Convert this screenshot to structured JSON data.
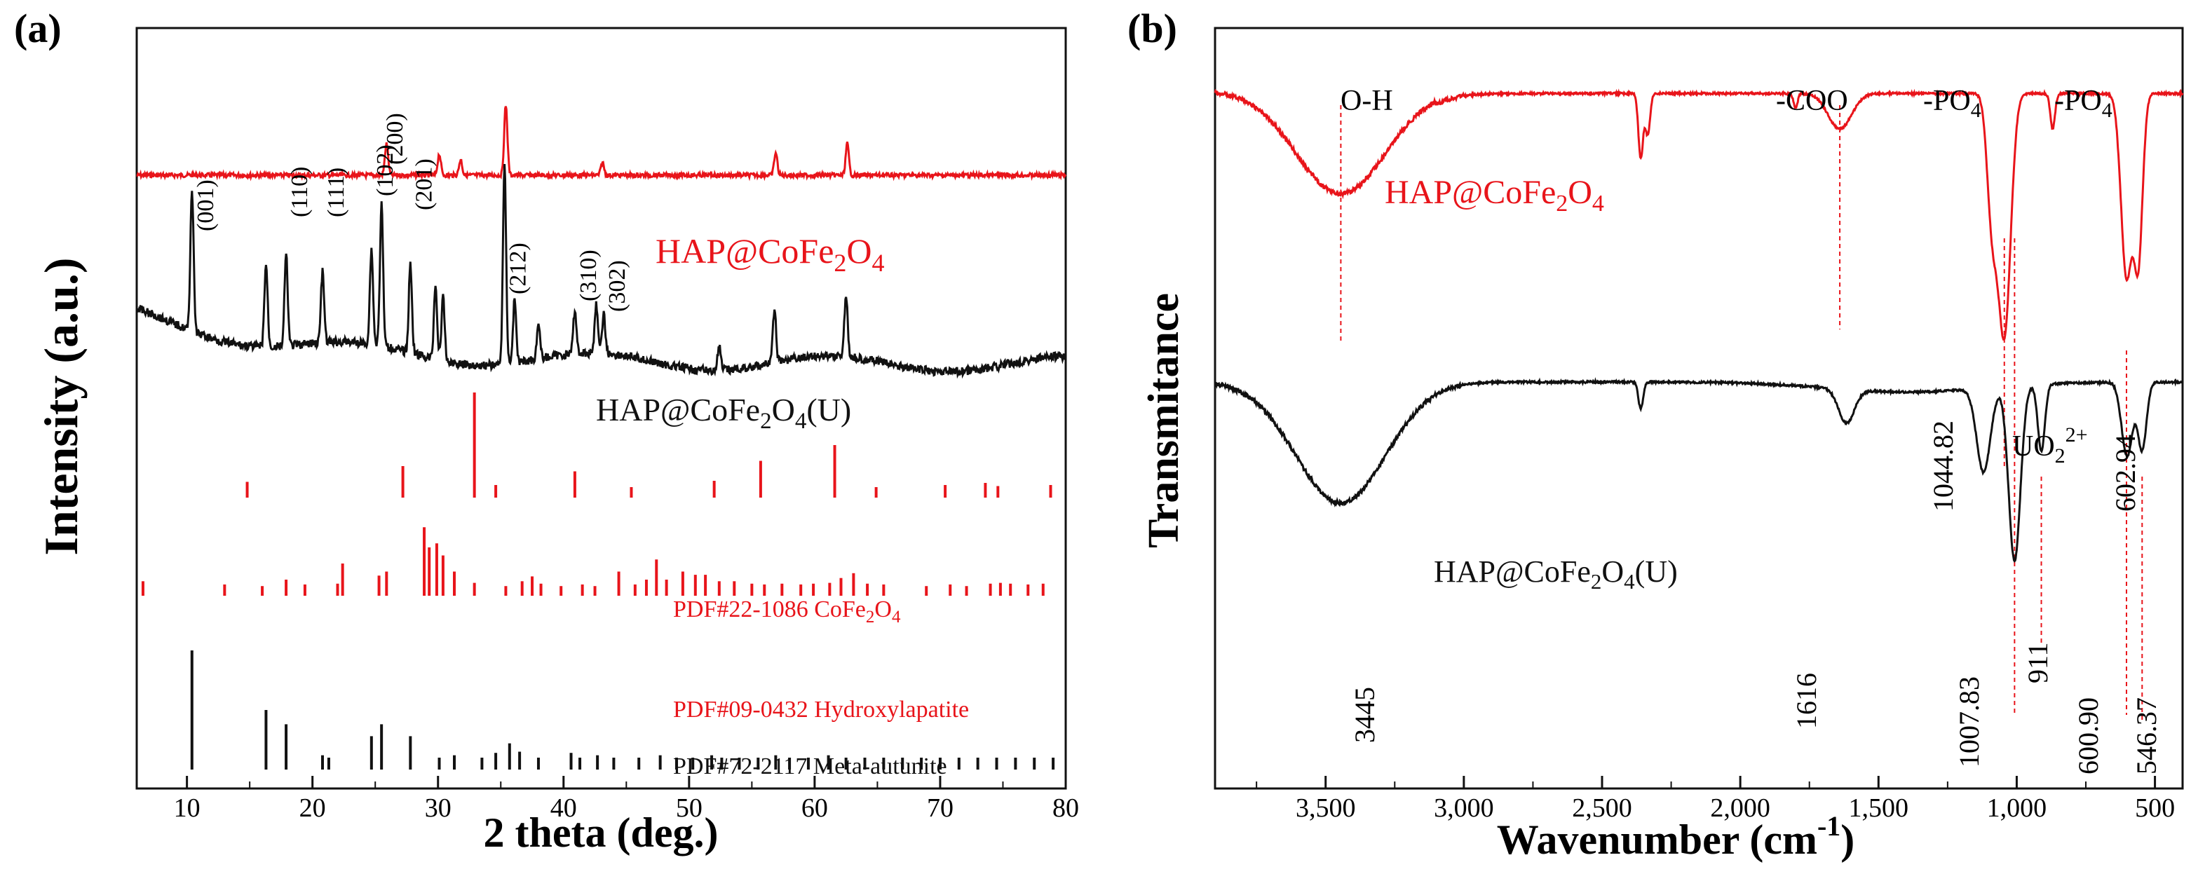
{
  "colors": {
    "red": "#e8141a",
    "black": "#111111",
    "ref_red": "#e8141a",
    "ref_black": "#111111"
  },
  "chart_data": [
    {
      "type": "line",
      "panel_label": "(a)",
      "xlabel": "2 theta (deg.)",
      "ylabel": "Intensity (a.u.)",
      "xlim": [
        6,
        80
      ],
      "xticks": [
        "10",
        "20",
        "30",
        "40",
        "50",
        "60",
        "70",
        "80"
      ],
      "series": [
        {
          "name": "HAP@CoFe2O4",
          "color": "red",
          "peaks": [
            [
              25.9,
              0.45
            ],
            [
              30.1,
              0.3
            ],
            [
              31.8,
              0.22
            ],
            [
              35.4,
              1.0
            ],
            [
              43.1,
              0.18
            ],
            [
              56.9,
              0.32
            ],
            [
              62.6,
              0.45
            ]
          ]
        },
        {
          "name": "HAP@CoFe2O4(U)",
          "color": "black",
          "peaks": [
            [
              10.4,
              0.72
            ],
            [
              16.3,
              0.42
            ],
            [
              17.9,
              0.46
            ],
            [
              20.8,
              0.36
            ],
            [
              24.7,
              0.48
            ],
            [
              25.5,
              0.72
            ],
            [
              27.8,
              0.45
            ],
            [
              29.8,
              0.38
            ],
            [
              30.4,
              0.32
            ],
            [
              35.3,
              1.0
            ],
            [
              36.1,
              0.32
            ],
            [
              38.0,
              0.18
            ],
            [
              40.9,
              0.22
            ],
            [
              42.6,
              0.25
            ],
            [
              43.2,
              0.2
            ],
            [
              52.4,
              0.12
            ],
            [
              56.8,
              0.27
            ],
            [
              62.5,
              0.32
            ]
          ]
        }
      ],
      "series_labels": [
        {
          "base": "HAP@CoFe",
          "sub": "2",
          "mid": "O",
          "sub2": "4",
          "tail": ""
        },
        {
          "base": "HAP@CoFe",
          "sub": "2",
          "mid": "O",
          "sub2": "4",
          "tail": "(U)"
        }
      ],
      "peak_labels": [
        {
          "text": "(001)",
          "x": 10.4
        },
        {
          "text": "(110)",
          "x": 17.9
        },
        {
          "text": "(111)",
          "x": 20.8
        },
        {
          "text": "(102)",
          "x": 24.7
        },
        {
          "text": "(200)",
          "x": 25.5
        },
        {
          "text": "(201)",
          "x": 27.8
        },
        {
          "text": "(212)",
          "x": 35.3
        },
        {
          "text": "(310)",
          "x": 40.9
        },
        {
          "text": "(302)",
          "x": 43.2
        }
      ],
      "reference_patterns": [
        {
          "label": {
            "base": "PDF#22-1086 CoFe",
            "sub": "2",
            "mid": "O",
            "sub2": "4",
            "tail": ""
          },
          "color": "red",
          "lines": [
            [
              14.8,
              0.15
            ],
            [
              27.2,
              0.3
            ],
            [
              32.9,
              1.0
            ],
            [
              34.6,
              0.12
            ],
            [
              40.9,
              0.25
            ],
            [
              45.4,
              0.1
            ],
            [
              52.0,
              0.16
            ],
            [
              55.7,
              0.35
            ],
            [
              61.6,
              0.5
            ],
            [
              64.9,
              0.1
            ],
            [
              70.4,
              0.12
            ],
            [
              73.6,
              0.14
            ],
            [
              74.6,
              0.11
            ],
            [
              78.8,
              0.12
            ]
          ]
        },
        {
          "label": {
            "base": "PDF#09-0432 Hydroxylapatite",
            "sub": "",
            "mid": "",
            "sub2": "",
            "tail": ""
          },
          "color": "red",
          "lines": [
            [
              6.5,
              0.18
            ],
            [
              13.0,
              0.14
            ],
            [
              16.0,
              0.12
            ],
            [
              17.9,
              0.2
            ],
            [
              19.4,
              0.14
            ],
            [
              22.0,
              0.15
            ],
            [
              22.4,
              0.4
            ],
            [
              25.3,
              0.25
            ],
            [
              25.9,
              0.3
            ],
            [
              28.9,
              0.85
            ],
            [
              29.3,
              0.6
            ],
            [
              29.9,
              0.65
            ],
            [
              30.4,
              0.5
            ],
            [
              31.3,
              0.3
            ],
            [
              32.9,
              0.16
            ],
            [
              35.4,
              0.12
            ],
            [
              36.7,
              0.18
            ],
            [
              37.5,
              0.24
            ],
            [
              38.2,
              0.15
            ],
            [
              39.8,
              0.12
            ],
            [
              41.5,
              0.14
            ],
            [
              42.5,
              0.12
            ],
            [
              44.4,
              0.3
            ],
            [
              45.7,
              0.14
            ],
            [
              46.6,
              0.2
            ],
            [
              47.4,
              0.45
            ],
            [
              48.2,
              0.2
            ],
            [
              49.5,
              0.3
            ],
            [
              50.5,
              0.26
            ],
            [
              51.3,
              0.26
            ],
            [
              52.4,
              0.18
            ],
            [
              53.6,
              0.18
            ],
            [
              55.0,
              0.15
            ],
            [
              56.0,
              0.14
            ],
            [
              57.4,
              0.15
            ],
            [
              58.9,
              0.14
            ],
            [
              59.9,
              0.15
            ],
            [
              61.2,
              0.16
            ],
            [
              62.1,
              0.22
            ],
            [
              63.1,
              0.28
            ],
            [
              64.2,
              0.15
            ],
            [
              65.5,
              0.14
            ],
            [
              68.9,
              0.12
            ],
            [
              70.8,
              0.14
            ],
            [
              72.1,
              0.12
            ],
            [
              74.0,
              0.15
            ],
            [
              74.8,
              0.16
            ],
            [
              75.6,
              0.15
            ],
            [
              77.0,
              0.14
            ],
            [
              78.2,
              0.15
            ]
          ]
        },
        {
          "label": {
            "base": "PDF#72-2117 Meta-autunite",
            "sub": "",
            "mid": "",
            "sub2": "",
            "tail": ""
          },
          "color": "black",
          "lines": [
            [
              10.4,
              1.0
            ],
            [
              16.3,
              0.5
            ],
            [
              17.9,
              0.38
            ],
            [
              20.8,
              0.12
            ],
            [
              21.3,
              0.1
            ],
            [
              24.7,
              0.28
            ],
            [
              25.5,
              0.38
            ],
            [
              27.8,
              0.28
            ],
            [
              30.1,
              0.1
            ],
            [
              31.3,
              0.12
            ],
            [
              33.5,
              0.1
            ],
            [
              34.6,
              0.14
            ],
            [
              35.7,
              0.22
            ],
            [
              36.5,
              0.15
            ],
            [
              38.0,
              0.1
            ],
            [
              40.6,
              0.14
            ],
            [
              41.3,
              0.1
            ],
            [
              42.7,
              0.12
            ],
            [
              44.0,
              0.1
            ],
            [
              46.0,
              0.1
            ],
            [
              47.7,
              0.12
            ],
            [
              49.0,
              0.1
            ],
            [
              50.3,
              0.1
            ],
            [
              51.8,
              0.12
            ],
            [
              52.6,
              0.1
            ],
            [
              54.0,
              0.1
            ],
            [
              55.5,
              0.1
            ],
            [
              56.9,
              0.12
            ],
            [
              58.0,
              0.1
            ],
            [
              59.5,
              0.1
            ],
            [
              61.1,
              0.12
            ],
            [
              62.5,
              0.1
            ],
            [
              64.0,
              0.1
            ],
            [
              65.5,
              0.1
            ],
            [
              67.0,
              0.1
            ],
            [
              68.5,
              0.1
            ],
            [
              70.0,
              0.1
            ],
            [
              71.5,
              0.1
            ],
            [
              73.0,
              0.1
            ],
            [
              74.5,
              0.1
            ],
            [
              76.0,
              0.1
            ],
            [
              77.5,
              0.1
            ],
            [
              79.0,
              0.1
            ]
          ]
        }
      ]
    },
    {
      "type": "line",
      "panel_label": "(b)",
      "xlabel_base": "Wavenumber (cm",
      "xlabel_sup": "-1",
      "xlabel_tail": ")",
      "ylabel": "Transmitance",
      "xlim": [
        3900,
        400
      ],
      "xticks": [
        "3,500",
        "3,000",
        "2,500",
        "2,000",
        "1,500",
        "1,000",
        "500"
      ],
      "xtick_values": [
        3500,
        3000,
        2500,
        2000,
        1500,
        1000,
        500
      ],
      "series": [
        {
          "name": "HAP@CoFe2O4",
          "color": "red",
          "dips": [
            [
              3445,
              0.35,
              230
            ],
            [
              2360,
              0.22,
              12
            ],
            [
              2335,
              0.14,
              12
            ],
            [
              1640,
              0.12,
              60
            ],
            [
              1800,
              0.05,
              10
            ],
            [
              1044.82,
              0.82,
              32
            ],
            [
              1090,
              0.4,
              25
            ],
            [
              870,
              0.12,
              12
            ],
            [
              602.94,
              0.62,
              28
            ],
            [
              560,
              0.55,
              22
            ]
          ]
        },
        {
          "name": "HAP@CoFe2O4(U)",
          "color": "black",
          "dips": [
            [
              3445,
              0.36,
              230
            ],
            [
              2360,
              0.08,
              12
            ],
            [
              1616,
              0.1,
              40
            ],
            [
              1120,
              0.25,
              35
            ],
            [
              1007.83,
              0.52,
              30
            ],
            [
              911,
              0.2,
              18
            ],
            [
              600.9,
              0.22,
              28
            ],
            [
              546.37,
              0.2,
              22
            ]
          ]
        }
      ],
      "series_labels": [
        {
          "base": "HAP@CoFe",
          "sub": "2",
          "mid": "O",
          "sub2": "4",
          "tail": ""
        },
        {
          "base": "HAP@CoFe",
          "sub": "2",
          "mid": "O",
          "sub2": "4",
          "tail": "(U)"
        }
      ],
      "group_labels": [
        {
          "text": "O-H",
          "sub": ""
        },
        {
          "text": "-COO",
          "sub": ""
        },
        {
          "text": "-PO",
          "sub": "4"
        },
        {
          "text": "-PO",
          "sub": "4"
        }
      ],
      "uranyl_label": {
        "base": "UO",
        "sub": "2",
        "sup": "2+"
      },
      "peak_values": [
        "1044.82",
        "602.94",
        "3445",
        "1616",
        "1007.83",
        "911",
        "600.90",
        "546.37"
      ],
      "guide_lines": [
        3445,
        1640,
        1044.82,
        1007.83,
        911,
        602.94,
        546.37
      ]
    }
  ]
}
